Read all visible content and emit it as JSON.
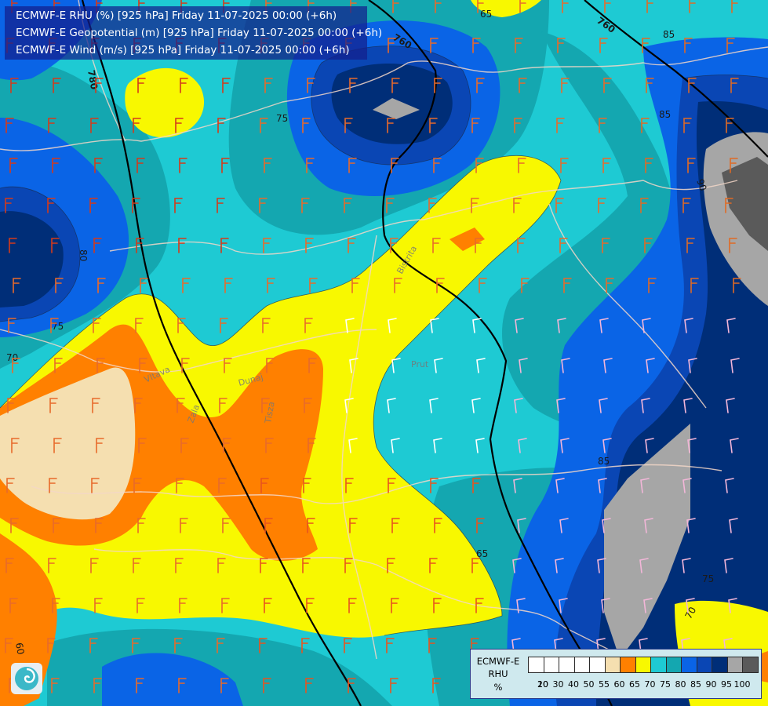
{
  "titles": {
    "line1": "ECMWF-E RHU (%) [925 hPa] Friday 11-07-2025 00:00 (+6h)",
    "line2": "ECMWF-E Geopotential (m) [925 hPa] Friday 11-07-2025 00:00 (+6h)",
    "line3": "ECMWF-E Wind (m/s) [925 hPa] Friday 11-07-2025 00:00 (+6h)"
  },
  "legend": {
    "model": "ECMWF-E",
    "variable": "RHU",
    "unit": "%",
    "ticks": [
      "10",
      "20",
      "30",
      "40",
      "50",
      "55",
      "60",
      "65",
      "70",
      "75",
      "80",
      "85",
      "90",
      "95",
      "100"
    ],
    "colors": [
      "#ffffff",
      "#ffffff",
      "#ffffff",
      "#ffffff",
      "#ffffff",
      "#f5dfb0",
      "#ff8000",
      "#f8f800",
      "#1ecad3",
      "#14a7b0",
      "#0a64e6",
      "#0a46b4",
      "#002e78",
      "#a6a6a6",
      "#5a5a5a"
    ]
  },
  "contour_labels": {
    "geopotential": [
      "760",
      "760",
      "780"
    ],
    "humidity": [
      "65",
      "75",
      "80",
      "70",
      "75",
      "85",
      "65",
      "60",
      "85",
      "75",
      "70",
      "85",
      "90"
    ]
  },
  "place_labels": [
    "Vltava",
    "Zala",
    "Dunaj",
    "Tisza",
    "Bistrita",
    "Prut"
  ],
  "colors": {
    "rhu_55": "#f5dfb0",
    "rhu_60": "#ff8000",
    "rhu_65": "#f8f800",
    "rhu_70": "#1ecad3",
    "rhu_75": "#14a7b0",
    "rhu_80": "#0a64e6",
    "rhu_85": "#0a46b4",
    "rhu_90": "#002e78",
    "rhu_95": "#a6a6a6",
    "rhu_100": "#5a5a5a",
    "borders": "#f3d7c8",
    "geopotential": "#000000"
  }
}
